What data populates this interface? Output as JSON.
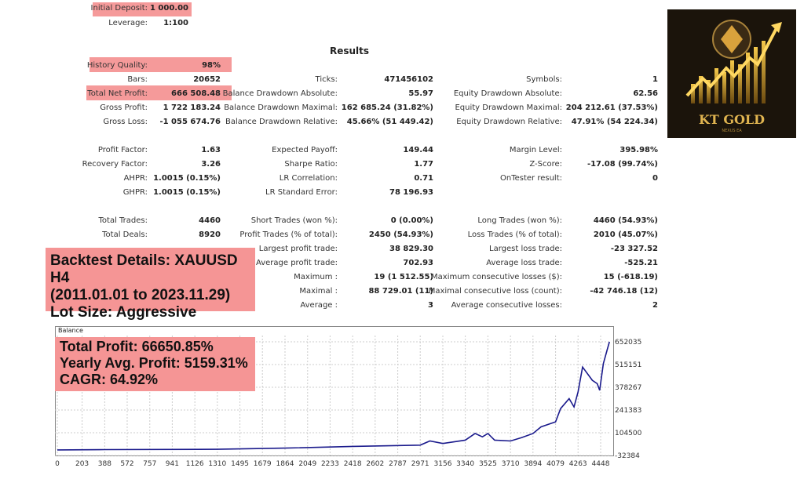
{
  "header": {
    "rows": [
      {
        "label": "Initial Deposit:",
        "value": "1 000.00",
        "highlight": true
      },
      {
        "label": "Leverage:",
        "value": "1:100"
      }
    ]
  },
  "results_title": "Results",
  "col1": [
    {
      "label": "History Quality:",
      "value": "98%",
      "highlight": true
    },
    {
      "label": "Bars:",
      "value": "20652"
    },
    {
      "label": "Total Net Profit:",
      "value": "666 508.48",
      "highlight": true
    },
    {
      "label": "Gross Profit:",
      "value": "1 722 183.24"
    },
    {
      "label": "Gross Loss:",
      "value": "-1 055 674.76"
    },
    null,
    {
      "label": "Profit Factor:",
      "value": "1.63"
    },
    {
      "label": "Recovery Factor:",
      "value": "3.26"
    },
    {
      "label": "AHPR:",
      "value": "1.0015 (0.15%)"
    },
    {
      "label": "GHPR:",
      "value": "1.0015 (0.15%)"
    },
    null,
    {
      "label": "Total Trades:",
      "value": "4460"
    },
    {
      "label": "Total Deals:",
      "value": "8920"
    }
  ],
  "col2": [
    null,
    {
      "label": "Ticks:",
      "value": "471456102"
    },
    {
      "label": "Balance Drawdown Absolute:",
      "value": "55.97"
    },
    {
      "label": "Balance Drawdown Maximal:",
      "value": "162 685.24 (31.82%)"
    },
    {
      "label": "Balance Drawdown Relative:",
      "value": "45.66% (51 449.42)"
    },
    null,
    {
      "label": "Expected Payoff:",
      "value": "149.44"
    },
    {
      "label": "Sharpe Ratio:",
      "value": "1.77"
    },
    {
      "label": "LR Correlation:",
      "value": "0.71"
    },
    {
      "label": "LR Standard Error:",
      "value": "78 196.93"
    },
    null,
    {
      "label": "Short Trades (won %):",
      "value": "0 (0.00%)"
    },
    {
      "label": "Profit Trades (% of total):",
      "value": "2450 (54.93%)"
    },
    {
      "label": "Largest profit trade:",
      "value": "38 829.30"
    },
    {
      "label": "Average profit trade:",
      "value": "702.93"
    },
    {
      "label": "Maximum :",
      "value": "19 (1 512.55)"
    },
    {
      "label": "Maximal :",
      "value": "88 729.01 (11)"
    },
    {
      "label": "Average :",
      "value": "3"
    }
  ],
  "col3": [
    null,
    {
      "label": "Symbols:",
      "value": "1"
    },
    {
      "label": "Equity Drawdown Absolute:",
      "value": "62.56"
    },
    {
      "label": "Equity Drawdown Maximal:",
      "value": "204 212.61 (37.53%)"
    },
    {
      "label": "Equity Drawdown Relative:",
      "value": "47.91% (54 224.34)"
    },
    null,
    {
      "label": "Margin Level:",
      "value": "395.98%"
    },
    {
      "label": "Z-Score:",
      "value": "-17.08 (99.74%)"
    },
    {
      "label": "OnTester result:",
      "value": "0"
    },
    null,
    null,
    {
      "label": "Long Trades (won %):",
      "value": "4460 (54.93%)"
    },
    {
      "label": "Loss Trades (% of total):",
      "value": "2010 (45.07%)"
    },
    {
      "label": "Largest loss trade:",
      "value": "-23 327.52"
    },
    {
      "label": "Average loss trade:",
      "value": "-525.21"
    },
    {
      "label": "Maximum consecutive losses ($):",
      "value": "15 (-618.19)"
    },
    {
      "label": "Maximal consecutive loss (count):",
      "value": "-42 746.18 (12)"
    },
    {
      "label": "Average consecutive losses:",
      "value": "2"
    }
  ],
  "backtest_note": [
    "Backtest Details: XAUUSD H4",
    "(2011.01.01 to 2023.11.29)",
    "Lot Size: Aggressive"
  ],
  "chart_note": [
    "Total Profit: 66650.85%",
    "Yearly Avg. Profit: 5159.31%",
    "CAGR: 64.92%"
  ],
  "logo": {
    "text": "KT GOLD",
    "subtext": "NEXUS EA"
  },
  "colors": {
    "highlight": "#f59a9a",
    "line": "#1a1a8c"
  },
  "chart_data": {
    "type": "line",
    "title": "Balance",
    "x_ticks": [
      0,
      203,
      388,
      572,
      757,
      941,
      1126,
      1310,
      1495,
      1679,
      1864,
      2049,
      2233,
      2418,
      2602,
      2787,
      2971,
      3156,
      3340,
      3525,
      3710,
      3894,
      4079,
      4263,
      4448
    ],
    "y_ticks": [
      652035,
      515151,
      378267,
      241383,
      104500,
      -32384
    ],
    "ylim": [
      -32384,
      652035
    ],
    "grid": true,
    "series": [
      {
        "x": [
          0,
          388,
          1310,
          1864,
          2418,
          2971,
          3050,
          3156,
          3340,
          3420,
          3480,
          3525,
          3580,
          3710,
          3800,
          3894,
          3960,
          4079,
          4120,
          4190,
          4230,
          4263,
          4300,
          4380,
          4420,
          4440,
          4470,
          4500,
          4520
        ],
        "y": [
          1000,
          3000,
          5000,
          12000,
          22000,
          30000,
          55000,
          40000,
          60000,
          100000,
          80000,
          100000,
          60000,
          55000,
          75000,
          100000,
          140000,
          170000,
          250000,
          310000,
          260000,
          350000,
          500000,
          420000,
          400000,
          360000,
          520000,
          600000,
          652035
        ]
      }
    ]
  }
}
